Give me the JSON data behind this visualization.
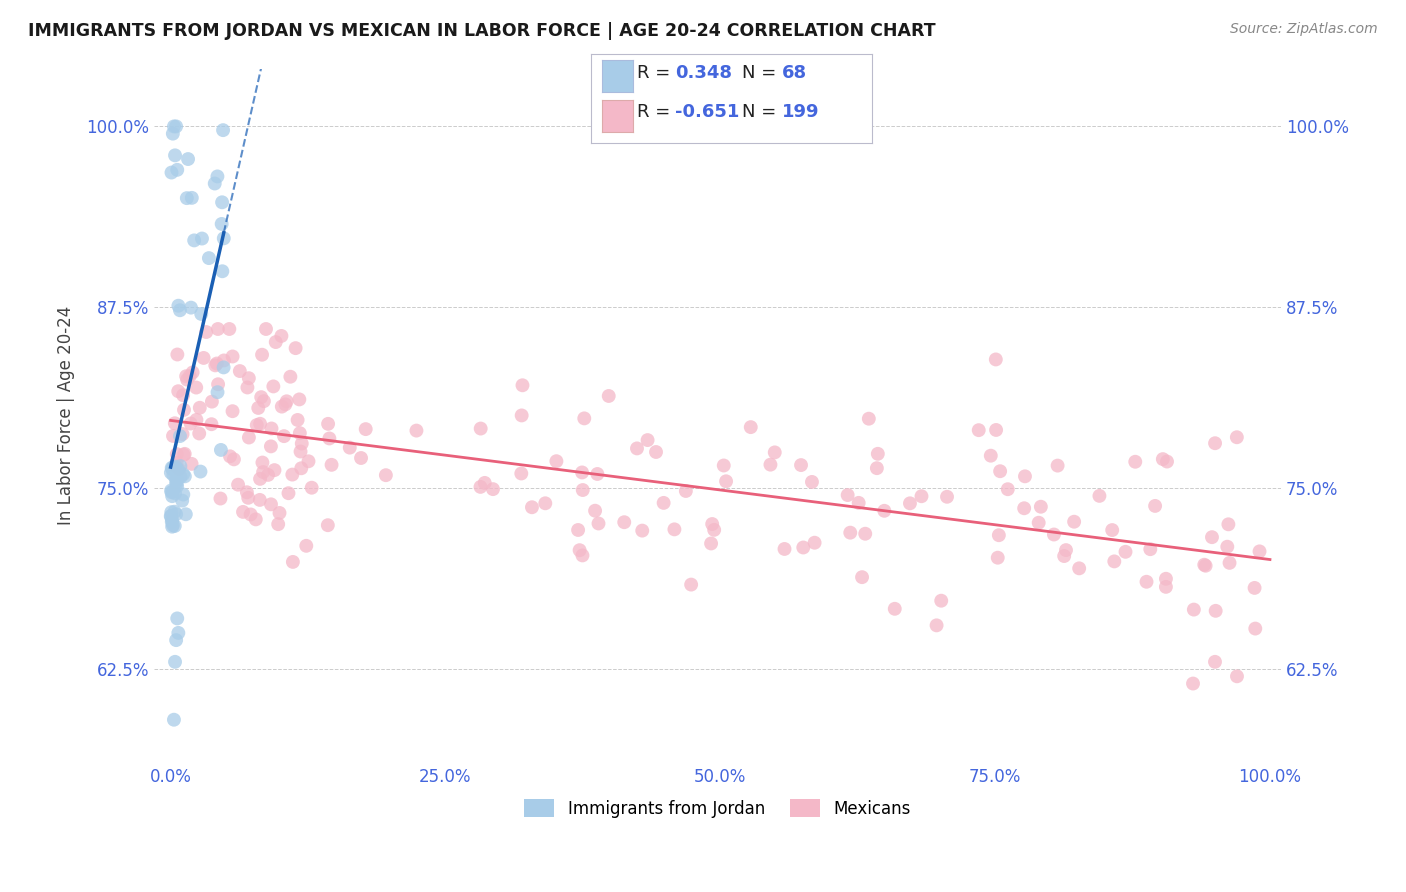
{
  "title": "IMMIGRANTS FROM JORDAN VS MEXICAN IN LABOR FORCE | AGE 20-24 CORRELATION CHART",
  "source": "Source: ZipAtlas.com",
  "ylabel": "In Labor Force | Age 20-24",
  "x_tick_labels": [
    "0.0%",
    "25.0%",
    "50.0%",
    "75.0%",
    "100.0%"
  ],
  "x_tick_vals": [
    0,
    25,
    50,
    75,
    100
  ],
  "y_tick_labels": [
    "62.5%",
    "75.0%",
    "87.5%",
    "100.0%"
  ],
  "y_tick_vals": [
    62.5,
    75.0,
    87.5,
    100.0
  ],
  "xlim": [
    -1.5,
    101
  ],
  "ylim": [
    56,
    104
  ],
  "jordan_R": 0.348,
  "jordan_N": 68,
  "mexican_R": -0.651,
  "mexican_N": 199,
  "jordan_color": "#a8cce8",
  "mexican_color": "#f4b8c8",
  "jordan_line_color": "#1a5fb4",
  "mexican_line_color": "#e8607a",
  "background_color": "#ffffff",
  "grid_color": "#cccccc",
  "legend_label_jordan": "Immigrants from Jordan",
  "legend_label_mexican": "Mexicans",
  "tick_color": "#4466dd",
  "legend_box_color": "#e8eef8",
  "legend_border_color": "#aabbdd"
}
